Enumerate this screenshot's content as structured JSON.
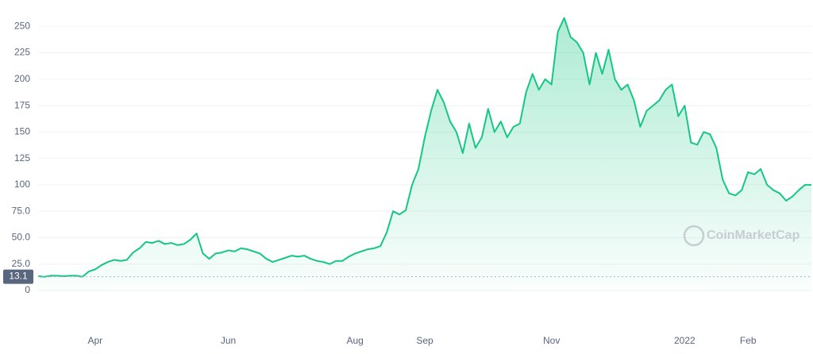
{
  "chart_data": {
    "type": "area",
    "categories": [
      null,
      null,
      null,
      null,
      null,
      null,
      null,
      null,
      null,
      "Apr",
      null,
      null,
      null,
      null,
      null,
      null,
      null,
      null,
      null,
      null,
      null,
      null,
      null,
      null,
      null,
      null,
      null,
      null,
      null,
      null,
      "Jun",
      null,
      null,
      null,
      null,
      null,
      null,
      null,
      null,
      null,
      null,
      null,
      null,
      null,
      null,
      null,
      null,
      null,
      null,
      null,
      "Aug",
      null,
      null,
      null,
      null,
      null,
      null,
      null,
      null,
      null,
      null,
      "Sep",
      null,
      null,
      null,
      null,
      null,
      null,
      null,
      null,
      null,
      null,
      null,
      null,
      null,
      null,
      null,
      null,
      null,
      null,
      null,
      "Nov",
      null,
      null,
      null,
      null,
      null,
      null,
      null,
      null,
      null,
      null,
      null,
      null,
      null,
      null,
      null,
      null,
      null,
      null,
      null,
      null,
      "2022",
      null,
      null,
      null,
      null,
      null,
      null,
      null,
      null,
      null,
      "Feb",
      null,
      null,
      null,
      null,
      null,
      null,
      null,
      null,
      null,
      null
    ],
    "series": [
      {
        "color": "#16c784",
        "values": [
          13.5,
          13,
          14,
          14,
          13.5,
          14,
          14,
          13,
          18,
          20,
          24,
          27,
          29,
          28,
          29,
          36,
          40,
          46,
          45,
          47,
          44,
          45,
          43,
          44,
          48,
          54,
          35,
          30,
          35,
          36,
          38,
          37,
          40,
          39,
          37,
          35,
          30,
          27,
          29,
          31,
          33,
          32,
          33,
          30,
          28,
          27,
          25,
          28,
          28,
          32,
          35,
          37,
          39,
          40,
          42,
          55,
          75,
          72,
          76,
          100,
          115,
          145,
          170,
          190,
          178,
          160,
          150,
          130,
          158,
          135,
          145,
          172,
          150,
          160,
          145,
          155,
          158,
          188,
          205,
          190,
          200,
          195,
          245,
          258,
          240,
          235,
          225,
          195,
          225,
          205,
          228,
          200,
          190,
          195,
          180,
          155,
          170,
          175,
          180,
          190,
          195,
          165,
          175,
          140,
          138,
          150,
          148,
          135,
          105,
          92,
          90,
          95,
          112,
          110,
          115,
          100,
          95,
          92,
          85,
          89,
          95,
          100,
          100
        ]
      }
    ],
    "ylim": [
      0,
      275
    ],
    "yticks": [
      0,
      {
        "value": 25,
        "label": "25.0"
      },
      {
        "value": 50,
        "label": "50.0"
      },
      {
        "value": 75,
        "label": "75.0"
      },
      100,
      125,
      150,
      175,
      200,
      225,
      250
    ],
    "grid": true,
    "reference_line": 13.1,
    "watermark": "CoinMarketCap"
  }
}
